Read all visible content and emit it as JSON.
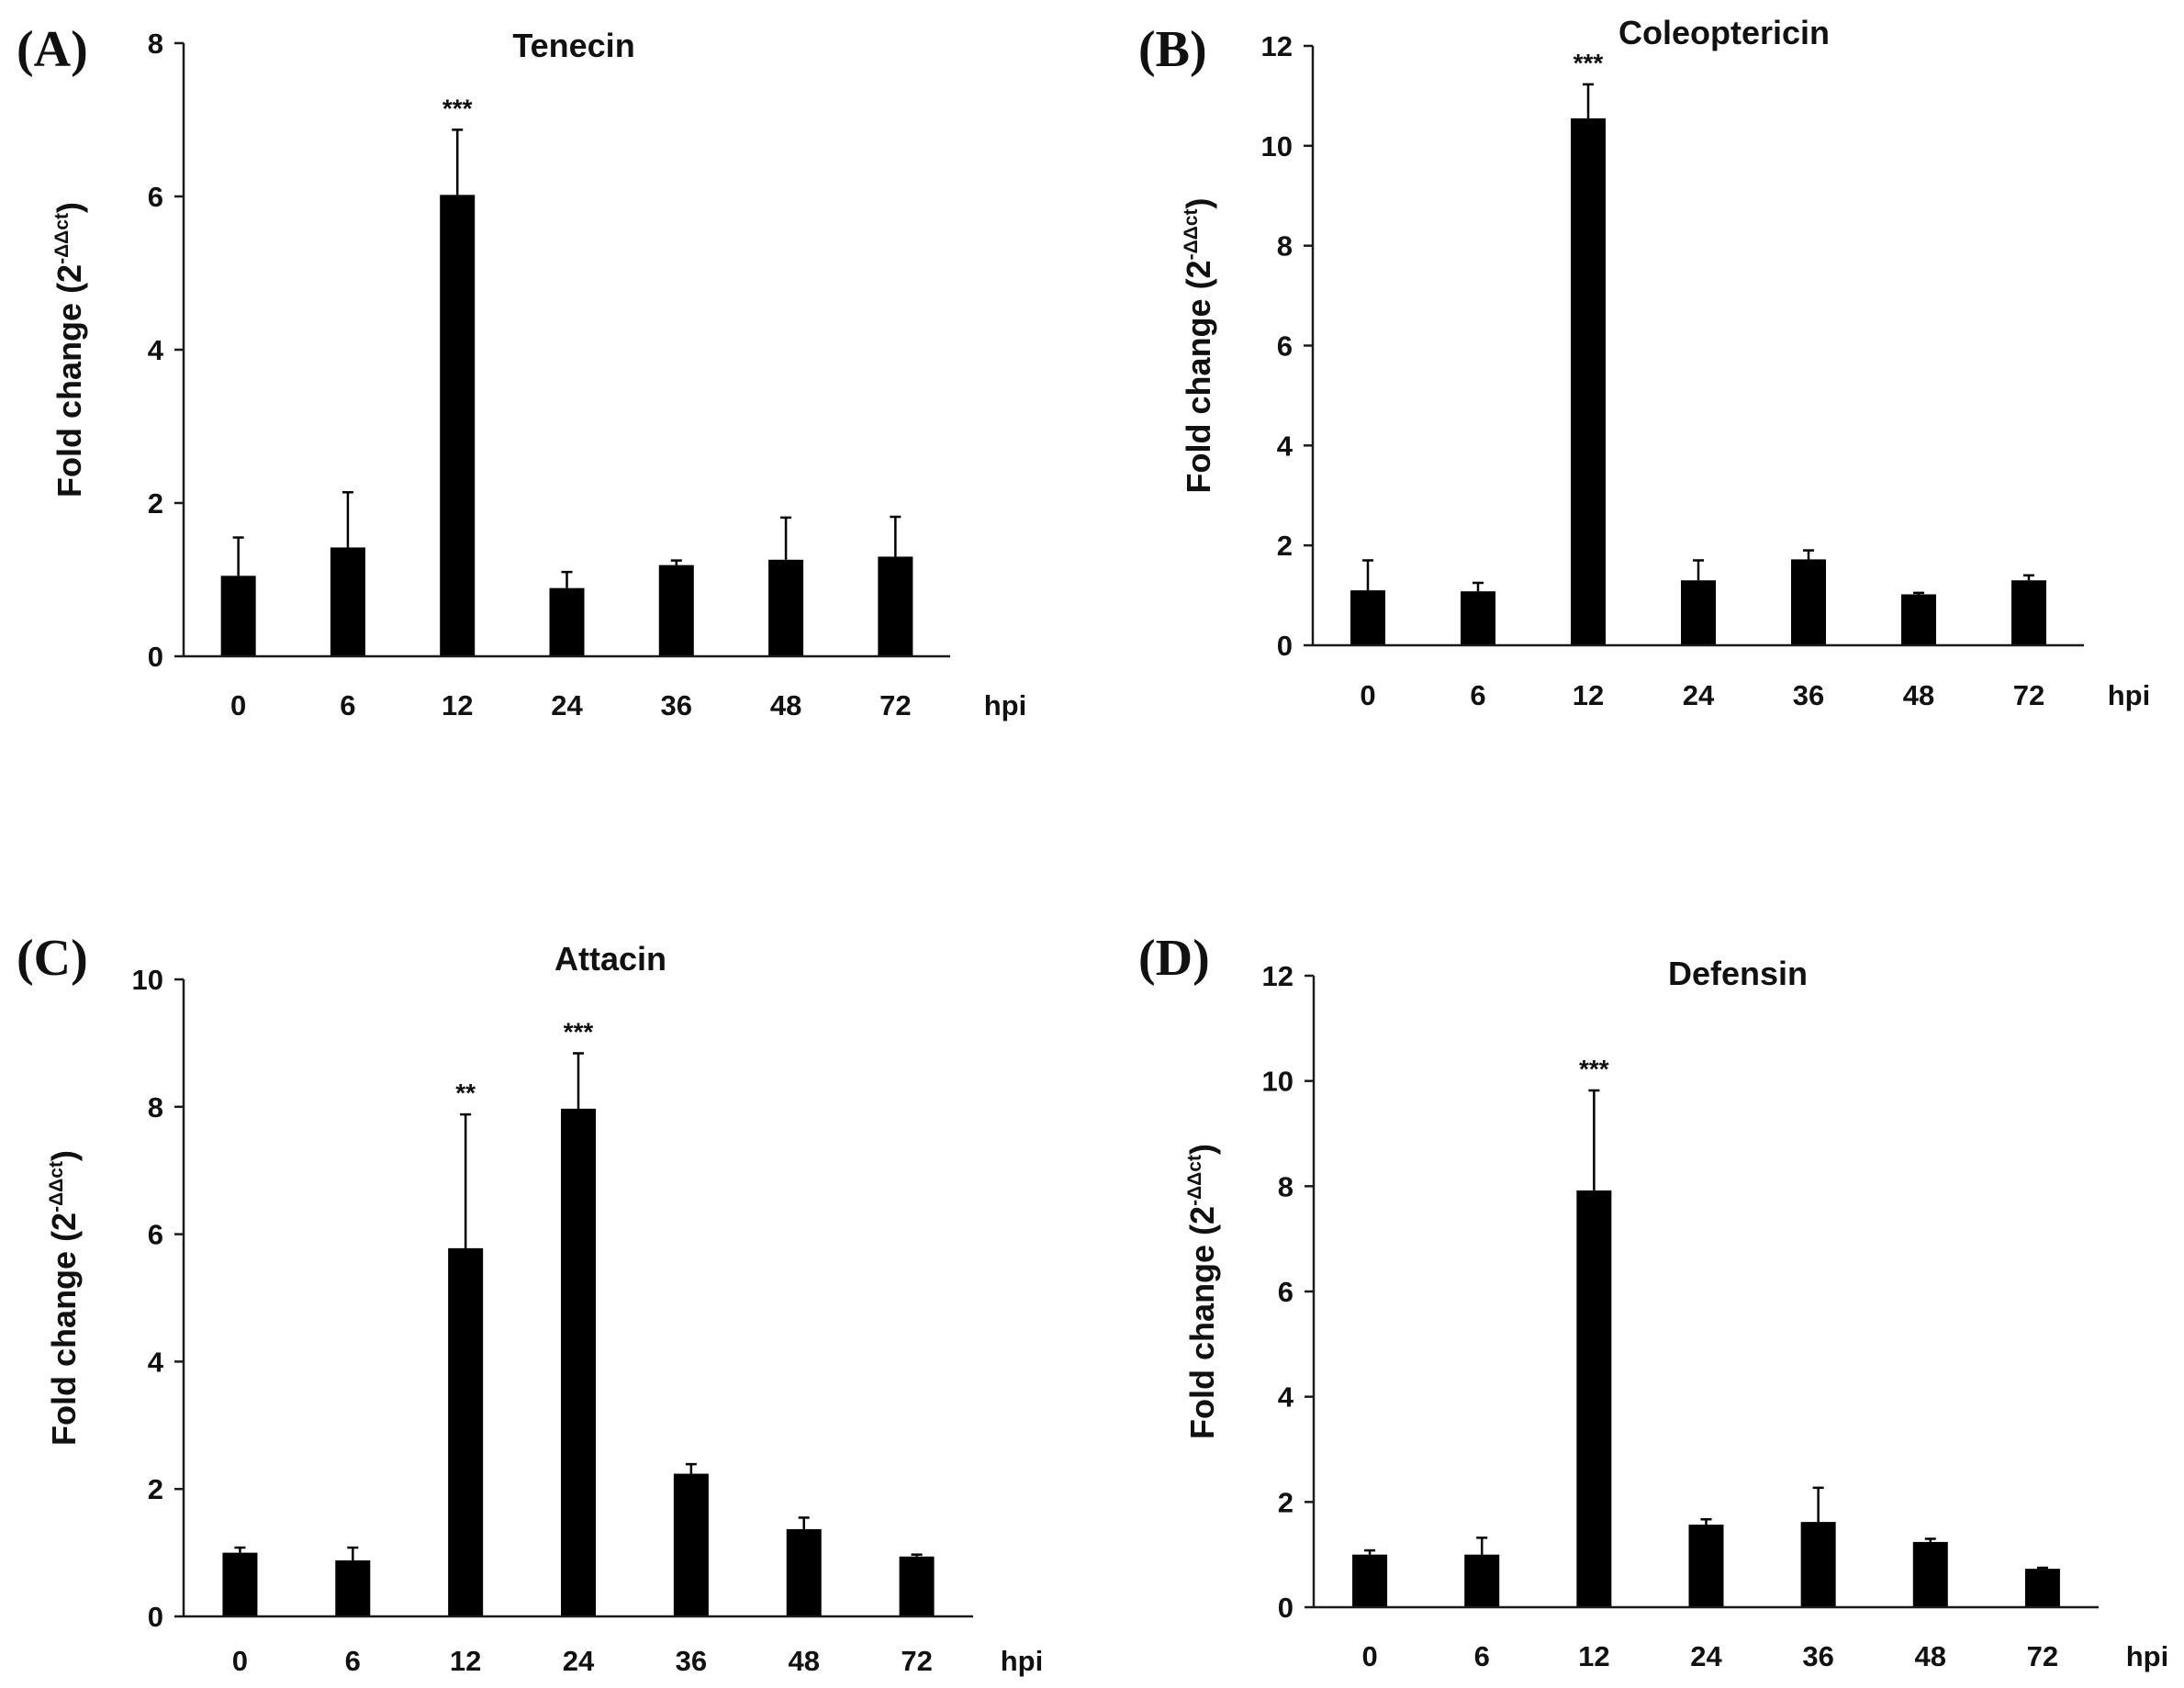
{
  "colors": {
    "bar": "#000000",
    "axis": "#1a1a1a"
  },
  "chart_data": [
    {
      "type": "bar",
      "panel": "(A)",
      "title": "Tenecin",
      "xlabel": "hpi",
      "ylabel": "Fold change (2",
      "ylabel_sup": "-ΔΔct",
      "ylabel_end": ")",
      "categories": [
        "0",
        "6",
        "12",
        "24",
        "36",
        "48",
        "72"
      ],
      "values": [
        1.05,
        1.42,
        6.02,
        0.89,
        1.19,
        1.26,
        1.3
      ],
      "errors": [
        0.5,
        0.72,
        0.85,
        0.21,
        0.06,
        0.55,
        0.52
      ],
      "significance": [
        "",
        "",
        "***",
        "",
        "",
        "",
        ""
      ],
      "ylim": [
        0,
        8
      ],
      "yticks": [
        "0",
        "2",
        "4",
        "6",
        "8"
      ]
    },
    {
      "type": "bar",
      "panel": "(B)",
      "title": "Coleoptericin",
      "xlabel": "hpi",
      "ylabel": "Fold change (2",
      "ylabel_sup": "-ΔΔct",
      "ylabel_end": ")",
      "categories": [
        "0",
        "6",
        "12",
        "24",
        "36",
        "48",
        "72"
      ],
      "values": [
        1.1,
        1.08,
        10.55,
        1.3,
        1.72,
        1.02,
        1.3
      ],
      "errors": [
        0.6,
        0.17,
        0.68,
        0.4,
        0.18,
        0.03,
        0.1
      ],
      "significance": [
        "",
        "",
        "***",
        "",
        "",
        "",
        ""
      ],
      "ylim": [
        0,
        12
      ],
      "yticks": [
        "0",
        "2",
        "4",
        "6",
        "8",
        "10",
        "12"
      ]
    },
    {
      "type": "bar",
      "panel": "(C)",
      "title": "Attacin",
      "xlabel": "hpi",
      "ylabel": "Fold change (2",
      "ylabel_sup": "-ΔΔct",
      "ylabel_end": ")",
      "categories": [
        "0",
        "6",
        "12",
        "24",
        "36",
        "48",
        "72"
      ],
      "values": [
        1.0,
        0.88,
        5.78,
        7.97,
        2.24,
        1.37,
        0.94
      ],
      "errors": [
        0.08,
        0.2,
        2.1,
        0.87,
        0.15,
        0.18,
        0.03
      ],
      "significance": [
        "",
        "",
        "**",
        "***",
        "",
        "",
        ""
      ],
      "ylim": [
        0,
        10
      ],
      "yticks": [
        "0",
        "2",
        "4",
        "6",
        "8",
        "10"
      ]
    },
    {
      "type": "bar",
      "panel": "(D)",
      "title": "Defensin",
      "xlabel": "hpi",
      "ylabel": "Fold change (2",
      "ylabel_sup": "-ΔΔct",
      "ylabel_end": ")",
      "categories": [
        "0",
        "6",
        "12",
        "24",
        "36",
        "48",
        "72"
      ],
      "values": [
        1.0,
        1.0,
        7.92,
        1.57,
        1.62,
        1.24,
        0.73
      ],
      "errors": [
        0.08,
        0.32,
        1.9,
        0.1,
        0.65,
        0.06,
        0.02
      ],
      "significance": [
        "",
        "",
        "***",
        "",
        "",
        "",
        ""
      ],
      "ylim": [
        0,
        12
      ],
      "yticks": [
        "0",
        "2",
        "4",
        "6",
        "8",
        "10",
        "12"
      ]
    }
  ]
}
